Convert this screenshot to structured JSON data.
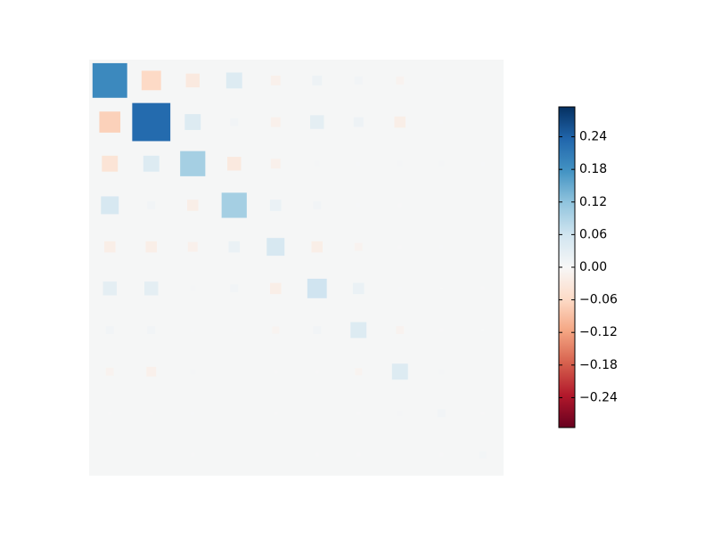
{
  "chart_data": {
    "type": "hinton",
    "colormap": "RdBu",
    "background": "#f5f6f6",
    "values": [
      [
        0.19,
        -0.06,
        -0.03,
        0.04,
        -0.015,
        0.015,
        0.01,
        -0.01,
        0.003,
        0.0
      ],
      [
        -0.07,
        0.23,
        0.04,
        0.01,
        -0.015,
        0.03,
        0.015,
        -0.02,
        0.003,
        0.0
      ],
      [
        -0.04,
        0.04,
        0.1,
        -0.03,
        -0.015,
        0.005,
        0.003,
        0.005,
        0.005,
        0.003
      ],
      [
        0.05,
        0.01,
        -0.02,
        0.1,
        0.02,
        0.01,
        0.003,
        0.002,
        0.0,
        0.0
      ],
      [
        -0.02,
        -0.02,
        -0.015,
        0.02,
        0.05,
        -0.02,
        -0.01,
        0.002,
        0.003,
        0.0
      ],
      [
        0.03,
        0.03,
        0.005,
        0.01,
        -0.02,
        0.06,
        0.02,
        0.003,
        0.001,
        0.002
      ],
      [
        0.01,
        0.01,
        0.003,
        0.003,
        -0.008,
        0.01,
        0.04,
        -0.01,
        0.002,
        0.001
      ],
      [
        -0.01,
        -0.015,
        0.005,
        0.0,
        0.002,
        0.002,
        -0.008,
        0.04,
        0.005,
        0.0
      ],
      [
        0.002,
        0.002,
        0.003,
        0.0,
        0.002,
        0.0,
        0.002,
        0.005,
        0.01,
        0.002
      ],
      [
        0.0,
        0.0,
        0.002,
        0.0,
        0.0,
        0.002,
        0.002,
        0.0,
        0.002,
        0.008
      ]
    ],
    "clim": [
      -0.295,
      0.295
    ],
    "cticks": [
      {
        "value": -0.24,
        "label": "−0.24"
      },
      {
        "value": -0.18,
        "label": "−0.18"
      },
      {
        "value": -0.12,
        "label": "−0.12"
      },
      {
        "value": -0.06,
        "label": "−0.06"
      },
      {
        "value": 0,
        "label": "0.00"
      },
      0.06,
      0.12,
      0.18,
      0.24
    ]
  }
}
